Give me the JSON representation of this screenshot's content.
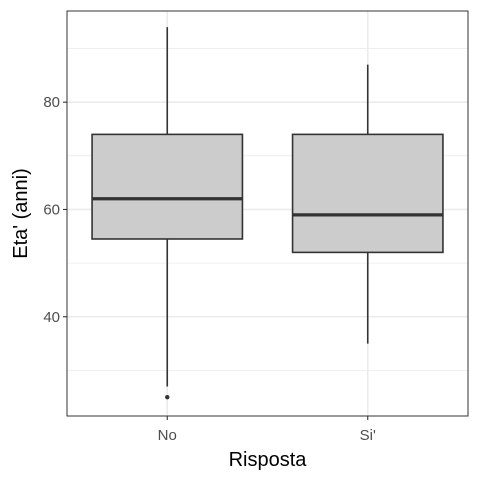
{
  "chart_data": {
    "type": "boxplot",
    "xlabel": "Risposta",
    "ylabel": "Eta' (anni)",
    "categories": [
      "No",
      "Si'"
    ],
    "ylim": [
      21.5,
      97
    ],
    "y_major_ticks": [
      40,
      60,
      80
    ],
    "y_minor_ticks": [
      30,
      50,
      70,
      90
    ],
    "grid": true,
    "boxes": [
      {
        "category": "No",
        "whisker_low": 27,
        "q1": 54.5,
        "median": 62,
        "q3": 74,
        "whisker_high": 94,
        "outliers": [
          25
        ]
      },
      {
        "category": "Si'",
        "whisker_low": 35,
        "q1": 52,
        "median": 59,
        "q3": 74,
        "whisker_high": 87,
        "outliers": []
      }
    ],
    "box_fill": "#cccccc",
    "box_stroke": "#333333",
    "grid_color": "#ebebeb",
    "panel_border": "#333333"
  }
}
